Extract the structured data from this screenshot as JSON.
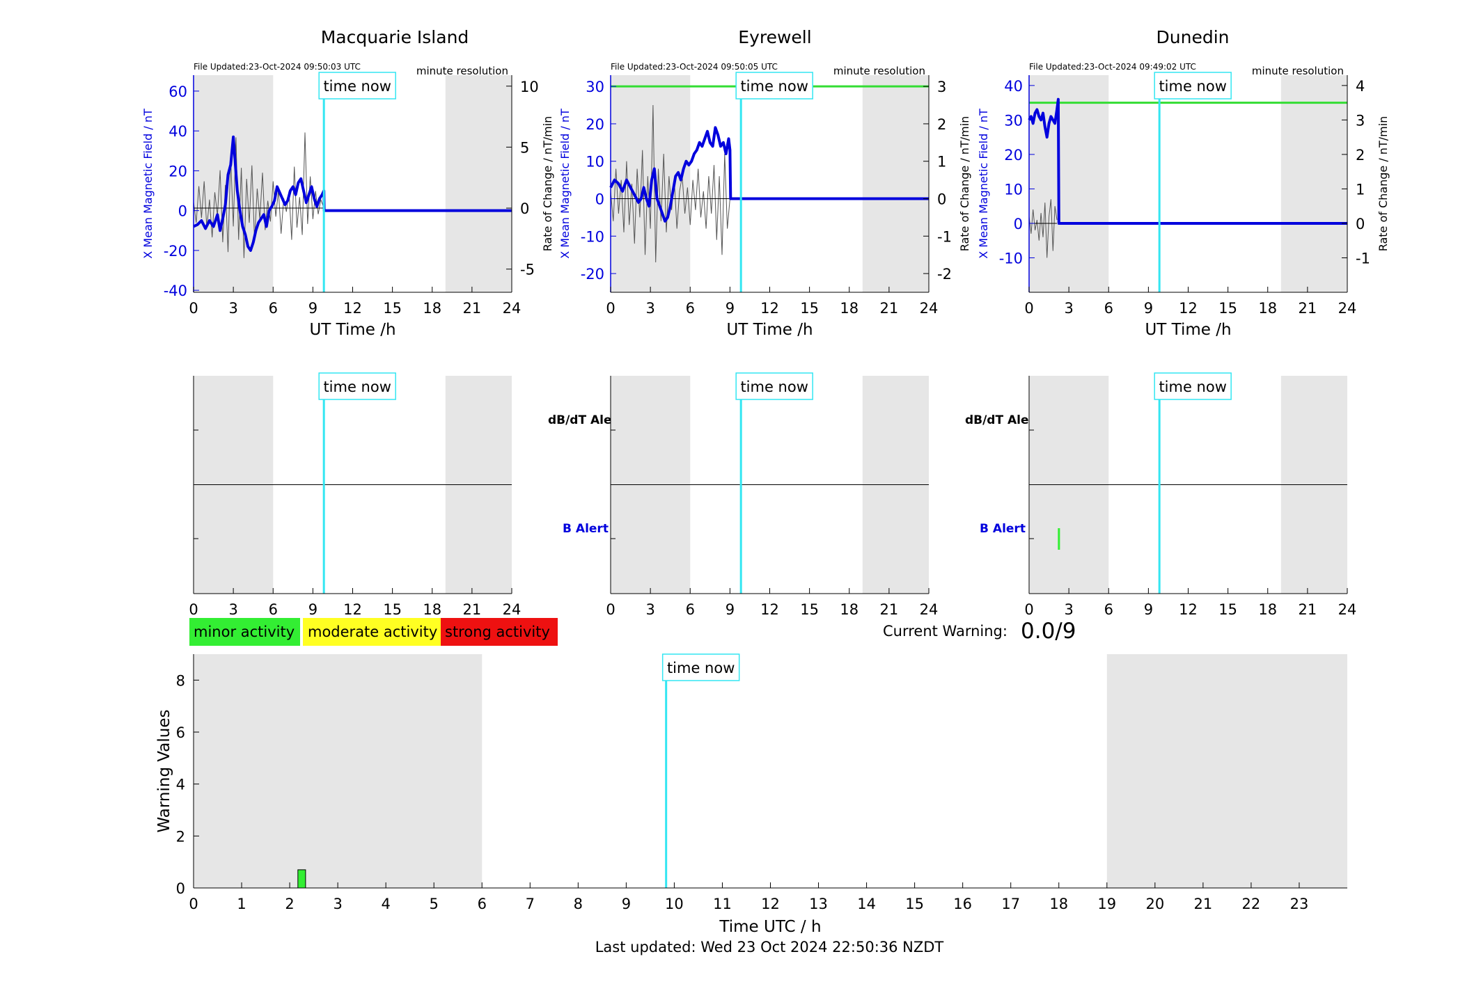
{
  "colors": {
    "field_line": "#0000dd",
    "rate_line": "#555555",
    "time_now_line": "#33e6f2",
    "threshold_line": "#33dd33",
    "shade": "#e6e6e6",
    "minor": "#33ee33",
    "moderate": "#ffff22",
    "strong": "#ee1111"
  },
  "labels": {
    "time_now": "time now",
    "resolution": "minute resolution",
    "ut_xlabel": "UT Time /h",
    "left_ylabel": "X Mean Magnetic Field / nT",
    "right_ylabel": "Rate of Change / nT/min",
    "dbdt_alert": "dB/dT Alert",
    "b_alert": "B Alert",
    "current_warning_label": "Current Warning:",
    "current_warning_value": "0.0/9",
    "legend_minor": "minor activity",
    "legend_moderate": "moderate activity",
    "legend_strong": "strong activity",
    "last_updated": "Last updated: Wed 23 Oct 2024 22:50:36 NZDT"
  },
  "chart_data": [
    {
      "type": "line",
      "title": "Macquarie Island",
      "updated": "File Updated:23-Oct-2024 09:50:03 UTC",
      "xlabel": "UT Time /h",
      "xlim": [
        0,
        24
      ],
      "xticks": [
        "0",
        "3",
        "6",
        "9",
        "12",
        "15",
        "18",
        "21",
        "24"
      ],
      "ylabel": "X Mean Magnetic Field / nT",
      "ylim": [
        -41,
        68
      ],
      "yticks": [
        "60",
        "40",
        "20",
        "0",
        "-20",
        "-40"
      ],
      "ylabel_right": "Rate of Change / nT/min",
      "ylim_right": [
        -6.9,
        10.9
      ],
      "yticks_right": [
        "10",
        "5",
        "0",
        "-5"
      ],
      "night_shading": [
        [
          0,
          6
        ],
        [
          19,
          24
        ]
      ],
      "time_now": 9.83,
      "threshold": null,
      "series": [
        {
          "name": "X Mean Magnetic Field",
          "axis": "left",
          "x": [
            0,
            0.3,
            0.6,
            0.9,
            1.2,
            1.5,
            1.8,
            2.0,
            2.2,
            2.4,
            2.6,
            2.8,
            2.9,
            3.0,
            3.1,
            3.3,
            3.5,
            3.7,
            3.9,
            4.1,
            4.3,
            4.5,
            4.7,
            4.9,
            5.1,
            5.3,
            5.5,
            5.7,
            5.9,
            6.1,
            6.3,
            6.5,
            6.7,
            6.9,
            7.1,
            7.3,
            7.5,
            7.7,
            7.9,
            8.1,
            8.3,
            8.5,
            8.7,
            8.9,
            9.1,
            9.3,
            9.5,
            9.7,
            9.83,
            9.85,
            24
          ],
          "y": [
            -8,
            -7,
            -5,
            -9,
            -5,
            -8,
            -2,
            -10,
            -4,
            3,
            18,
            23,
            30,
            37,
            28,
            10,
            0,
            -8,
            -12,
            -18,
            -20,
            -16,
            -10,
            -6,
            -4,
            -2,
            -8,
            0,
            2,
            5,
            12,
            9,
            6,
            3,
            5,
            10,
            12,
            8,
            14,
            16,
            10,
            4,
            8,
            12,
            6,
            2,
            6,
            8,
            10,
            0,
            0
          ]
        },
        {
          "name": "Rate of Change",
          "axis": "right",
          "x": [
            0,
            0.2,
            0.4,
            0.6,
            0.8,
            1.0,
            1.2,
            1.4,
            1.6,
            1.8,
            2.0,
            2.2,
            2.4,
            2.6,
            2.8,
            3.0,
            3.2,
            3.4,
            3.6,
            3.8,
            4.0,
            4.2,
            4.4,
            4.6,
            4.8,
            5.0,
            5.2,
            5.4,
            5.6,
            5.8,
            6.0,
            6.2,
            6.4,
            6.6,
            6.8,
            7.0,
            7.2,
            7.4,
            7.6,
            7.8,
            8.0,
            8.2,
            8.4,
            8.6,
            8.8,
            9.0,
            9.2,
            9.4,
            9.6,
            9.8
          ],
          "y": [
            0.5,
            -1.2,
            1.8,
            -0.8,
            2.2,
            -1.6,
            0.7,
            -2.4,
            1.3,
            -0.6,
            3.1,
            -2.8,
            1.9,
            -3.6,
            4.2,
            -1.5,
            5.8,
            -2.6,
            3.3,
            -4.1,
            2.4,
            -1.2,
            3.5,
            -2.7,
            1.6,
            -0.9,
            2.9,
            -1.8,
            0.6,
            -1.1,
            2.2,
            -0.7,
            1.5,
            -2.1,
            0.8,
            -0.3,
            1.4,
            -2.6,
            3.4,
            -1.6,
            0.9,
            -2.2,
            6.2,
            -1.3,
            2.6,
            -0.9,
            1.4,
            -0.5,
            0.7,
            0.1
          ]
        }
      ]
    },
    {
      "type": "line",
      "title": "Eyrewell",
      "updated": "File Updated:23-Oct-2024 09:50:05 UTC",
      "xlabel": "UT Time /h",
      "xlim": [
        0,
        24
      ],
      "xticks": [
        "0",
        "3",
        "6",
        "9",
        "12",
        "15",
        "18",
        "21",
        "24"
      ],
      "ylabel": "X Mean Magnetic Field / nT",
      "ylim": [
        -25,
        33
      ],
      "yticks": [
        "30",
        "20",
        "10",
        "0",
        "-10",
        "-20"
      ],
      "ylabel_right": "Rate of Change / nT/min",
      "ylim_right": [
        -2.5,
        3.3
      ],
      "yticks_right": [
        "3",
        "2",
        "1",
        "0",
        "-1",
        "-2"
      ],
      "night_shading": [
        [
          0,
          6
        ],
        [
          19,
          24
        ]
      ],
      "time_now": 9.83,
      "threshold": 30,
      "series": [
        {
          "name": "X Mean Magnetic Field",
          "axis": "left",
          "x": [
            0,
            0.3,
            0.6,
            0.9,
            1.2,
            1.5,
            1.8,
            2.1,
            2.3,
            2.5,
            2.7,
            2.9,
            3.1,
            3.3,
            3.5,
            3.7,
            3.9,
            4.1,
            4.3,
            4.5,
            4.7,
            4.9,
            5.1,
            5.3,
            5.5,
            5.7,
            5.9,
            6.1,
            6.3,
            6.5,
            6.7,
            6.9,
            7.1,
            7.3,
            7.5,
            7.7,
            7.9,
            8.1,
            8.3,
            8.5,
            8.7,
            8.9,
            9.0,
            9.05,
            24
          ],
          "y": [
            3,
            5,
            4,
            2,
            5,
            3,
            1,
            -1,
            0,
            3,
            0,
            -2,
            5,
            8,
            0,
            -2,
            -4,
            -6,
            -5,
            -2,
            2,
            6,
            7,
            5,
            8,
            10,
            9,
            10,
            12,
            13,
            15,
            14,
            16,
            18,
            15,
            14,
            19,
            17,
            14,
            15,
            12,
            16,
            13,
            0,
            0
          ]
        },
        {
          "name": "Rate of Change",
          "axis": "right",
          "x": [
            0,
            0.2,
            0.4,
            0.6,
            0.8,
            1.0,
            1.2,
            1.4,
            1.6,
            1.8,
            2.0,
            2.2,
            2.4,
            2.6,
            2.8,
            3.0,
            3.2,
            3.4,
            3.6,
            3.8,
            4.0,
            4.2,
            4.4,
            4.6,
            4.8,
            5.0,
            5.2,
            5.4,
            5.6,
            5.8,
            6.0,
            6.2,
            6.4,
            6.6,
            6.8,
            7.0,
            7.2,
            7.4,
            7.6,
            7.8,
            8.0,
            8.2,
            8.4,
            8.6,
            8.8,
            9.0
          ],
          "y": [
            0.2,
            -0.6,
            0.8,
            -0.4,
            0.5,
            -0.9,
            1.0,
            -0.7,
            0.4,
            -1.2,
            0.8,
            -0.5,
            1.3,
            -1.5,
            0.6,
            -0.8,
            2.5,
            -1.7,
            0.8,
            -0.6,
            1.2,
            -0.9,
            0.6,
            -0.3,
            0.5,
            -0.8,
            0.2,
            0.6,
            -0.4,
            0.3,
            -0.7,
            0.5,
            -0.3,
            0.8,
            -0.5,
            0.2,
            -0.8,
            0.6,
            -0.4,
            0.9,
            -1.1,
            0.6,
            -1.5,
            1.2,
            -0.8,
            0.0
          ]
        }
      ]
    },
    {
      "type": "line",
      "title": "Dunedin",
      "updated": "File Updated:23-Oct-2024 09:49:02 UTC",
      "xlabel": "UT Time /h",
      "xlim": [
        0,
        24
      ],
      "xticks": [
        "0",
        "3",
        "6",
        "9",
        "12",
        "15",
        "18",
        "21",
        "24"
      ],
      "ylabel": "X Mean Magnetic Field / nT",
      "ylim": [
        -20,
        43
      ],
      "yticks": [
        "40",
        "30",
        "20",
        "10",
        "0",
        "-10"
      ],
      "ylabel_right": "Rate of Change / nT/min",
      "ylim_right": [
        -2.0,
        4.3
      ],
      "yticks_right": [
        "4",
        "3",
        "2",
        "1",
        "0",
        "-1"
      ],
      "night_shading": [
        [
          0,
          6
        ],
        [
          19,
          24
        ]
      ],
      "time_now": 9.83,
      "threshold": 35,
      "series": [
        {
          "name": "X Mean Magnetic Field",
          "axis": "left",
          "x": [
            0,
            0.15,
            0.3,
            0.45,
            0.6,
            0.75,
            0.9,
            1.05,
            1.2,
            1.35,
            1.5,
            1.65,
            1.8,
            1.95,
            2.1,
            2.2,
            2.25,
            2.28,
            24
          ],
          "y": [
            30,
            31,
            29,
            32,
            33,
            31,
            30,
            32,
            28,
            25,
            29,
            31,
            30,
            29,
            33,
            36,
            0,
            0,
            0
          ]
        },
        {
          "name": "Rate of Change",
          "axis": "right",
          "x": [
            0,
            0.15,
            0.3,
            0.45,
            0.6,
            0.75,
            0.9,
            1.05,
            1.2,
            1.35,
            1.5,
            1.65,
            1.8,
            1.95,
            2.1
          ],
          "y": [
            0.2,
            -0.3,
            0.4,
            -0.2,
            0.1,
            -0.5,
            0.3,
            -0.4,
            0.6,
            -1.0,
            0.2,
            0.7,
            -0.8,
            0.5,
            0.1
          ]
        }
      ]
    },
    {
      "type": "bar",
      "title": "dB/dT Alert and B Alert",
      "site": "Macquarie Island",
      "xlim": [
        0,
        24
      ],
      "xticks": [
        "0",
        "3",
        "6",
        "9",
        "12",
        "15",
        "18",
        "21",
        "24"
      ],
      "night_shading": [
        [
          0,
          6
        ],
        [
          19,
          24
        ]
      ],
      "time_now": 9.83,
      "dbdt_alerts": [],
      "b_alerts": []
    },
    {
      "type": "bar",
      "title": "dB/dT Alert and B Alert",
      "site": "Eyrewell",
      "xlim": [
        0,
        24
      ],
      "xticks": [
        "0",
        "3",
        "6",
        "9",
        "12",
        "15",
        "18",
        "21",
        "24"
      ],
      "night_shading": [
        [
          0,
          6
        ],
        [
          19,
          24
        ]
      ],
      "time_now": 9.83,
      "dbdt_alerts": [],
      "b_alerts": []
    },
    {
      "type": "bar",
      "title": "dB/dT Alert and B Alert",
      "site": "Dunedin",
      "xlim": [
        0,
        24
      ],
      "xticks": [
        "0",
        "3",
        "6",
        "9",
        "12",
        "15",
        "18",
        "21",
        "24"
      ],
      "night_shading": [
        [
          0,
          6
        ],
        [
          19,
          24
        ]
      ],
      "time_now": 9.83,
      "dbdt_alerts": [],
      "b_alerts": [
        {
          "start": 2.17,
          "end": 2.33,
          "level": "minor"
        }
      ]
    },
    {
      "type": "bar",
      "title": "Warning Values",
      "xlabel": "Time UTC / h",
      "ylabel": "Warning Values",
      "xlim": [
        0,
        24
      ],
      "ylim": [
        0,
        9
      ],
      "xticks": [
        "0",
        "1",
        "2",
        "3",
        "4",
        "5",
        "6",
        "7",
        "8",
        "9",
        "10",
        "11",
        "12",
        "13",
        "14",
        "15",
        "16",
        "17",
        "18",
        "19",
        "20",
        "21",
        "22",
        "23"
      ],
      "yticks": [
        "0",
        "2",
        "4",
        "6",
        "8"
      ],
      "night_shading": [
        [
          0,
          6
        ],
        [
          19,
          24
        ]
      ],
      "time_now": 9.83,
      "bars": [
        {
          "start": 2.17,
          "end": 2.33,
          "value": 0.7,
          "level": "minor"
        }
      ]
    }
  ]
}
